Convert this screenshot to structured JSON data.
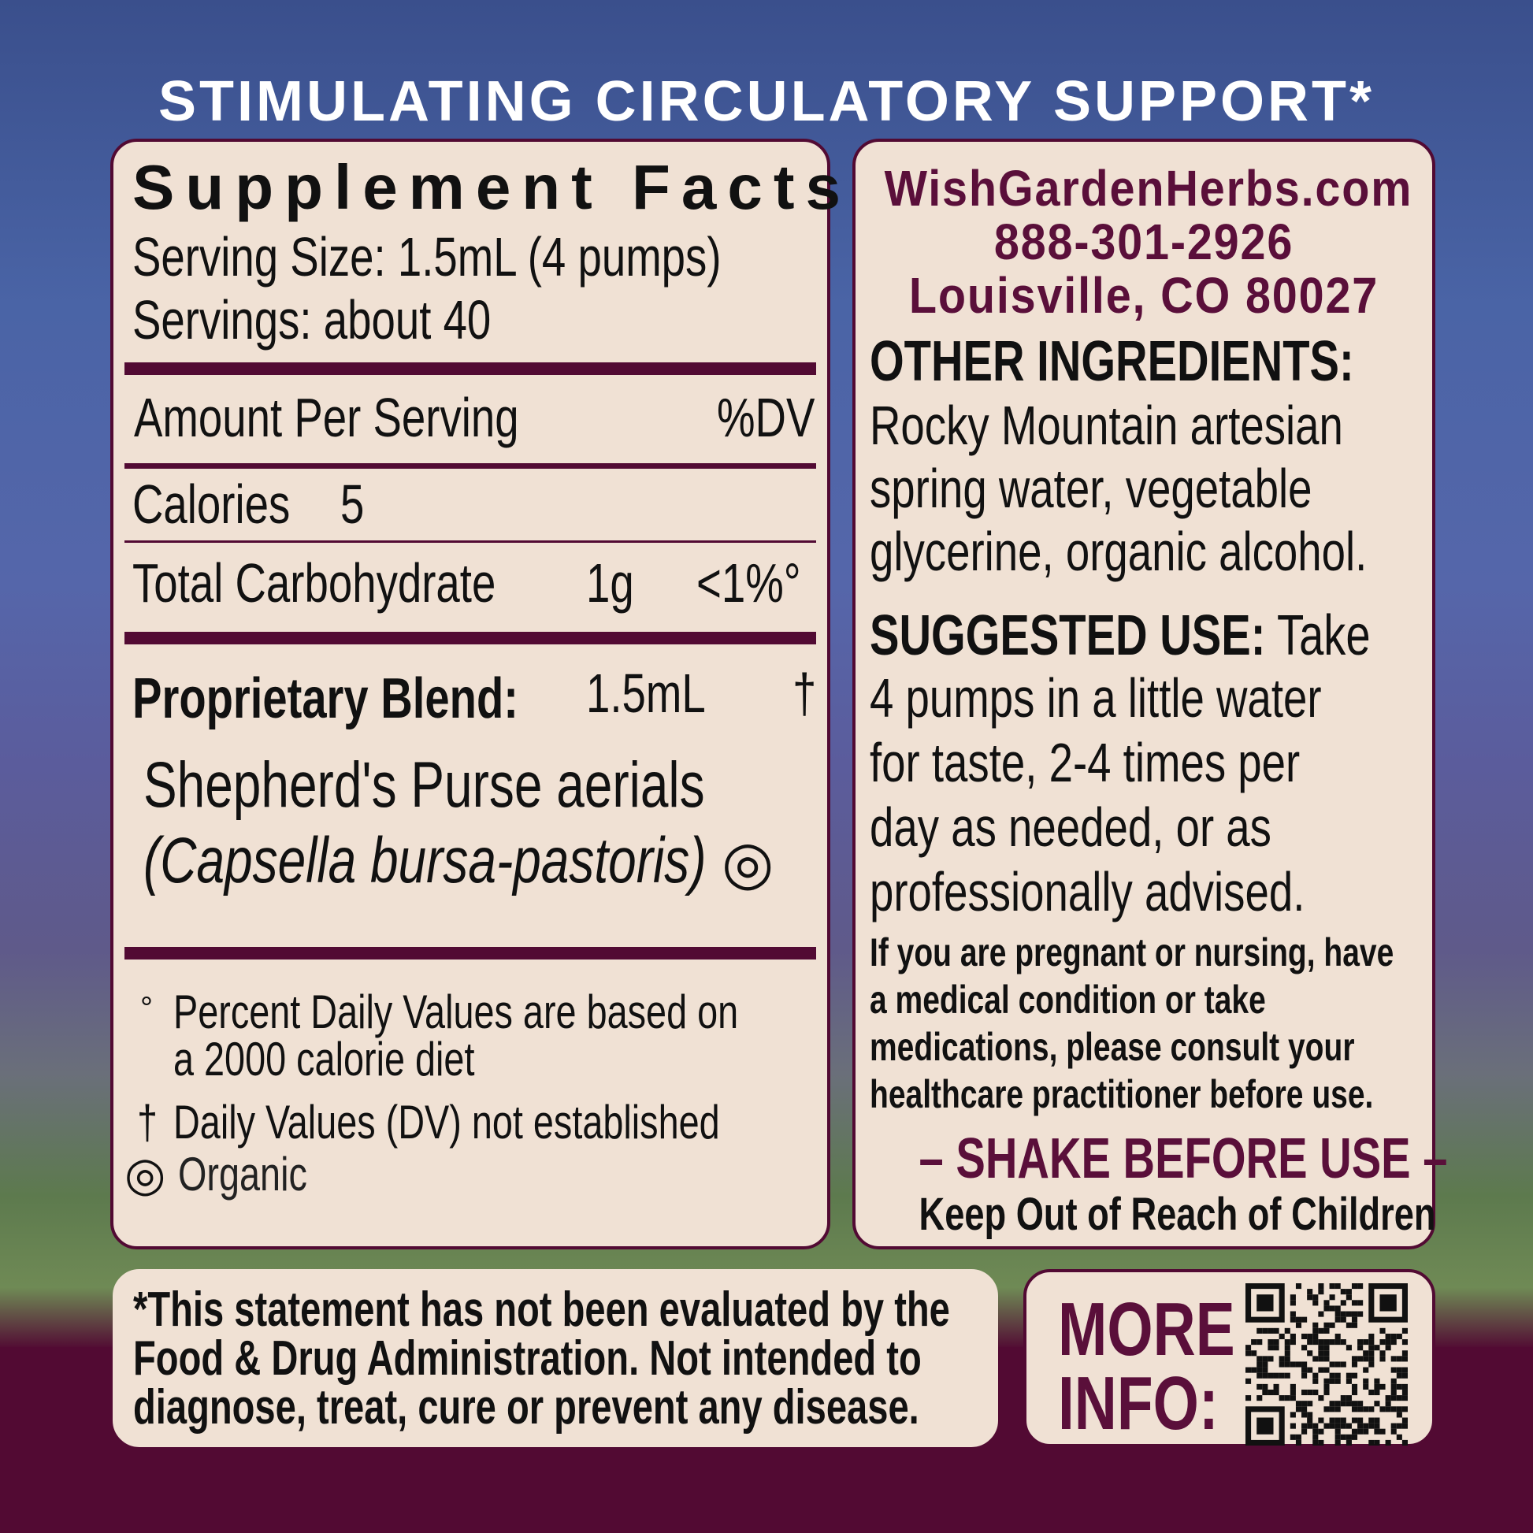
{
  "title": "STIMULATING CIRCULATORY SUPPORT*",
  "facts": {
    "heading": "Supplement Facts",
    "serving_size": "Serving Size: 1.5mL (4 pumps)",
    "servings": "Servings: about 40",
    "amount_header": "Amount Per Serving",
    "dv_header": "%DV",
    "calories_label": "Calories",
    "calories_value": "5",
    "carb_label": "Total Carbohydrate",
    "carb_amount": "1g",
    "carb_dv": "<1%°",
    "blend_label": "Proprietary Blend:",
    "blend_amount": "1.5mL",
    "blend_dv": "†",
    "ingredient_name": "Shepherd's Purse aerials",
    "ingredient_latin": "(Capsella bursa-pastoris)",
    "organic_symbol": "◎",
    "footnote_1a": "Percent Daily Values are based on",
    "footnote_1b": "a 2000 calorie diet",
    "footnote_1_marker": "°",
    "footnote_2_marker": "†",
    "footnote_2": "Daily Values (DV) not established",
    "organic_label": "Organic"
  },
  "contact": {
    "website": "WishGardenHerbs.com",
    "phone": "888-301-2926",
    "address": "Louisville, CO 80027"
  },
  "other_ingredients": {
    "heading": "OTHER INGREDIENTS:",
    "lines": [
      "Rocky Mountain artesian",
      "spring water, vegetable",
      "glycerine, organic alcohol."
    ]
  },
  "suggested_use": {
    "heading": "SUGGESTED USE:",
    "first": "Take",
    "lines": [
      "4 pumps in a little water",
      "for taste, 2-4 times per",
      "day as needed, or as",
      "professionally advised."
    ]
  },
  "warning": {
    "lines": [
      "If you are pregnant or nursing, have",
      "a medical condition or take",
      "medications, please consult your",
      "healthcare practitioner before use."
    ]
  },
  "shake": "– SHAKE BEFORE USE –",
  "keep_out": "Keep Out of Reach of Children",
  "disclaimer": {
    "lines": [
      "*This statement has not been evaluated by the",
      "Food & Drug Administration. Not intended to",
      "diagnose, treat, cure or prevent any disease."
    ]
  },
  "more_info": {
    "line1": "MORE",
    "line2": "INFO:"
  },
  "colors": {
    "plum": "#520a33",
    "panel": "#f0e1d4",
    "title": "#ffffff"
  }
}
